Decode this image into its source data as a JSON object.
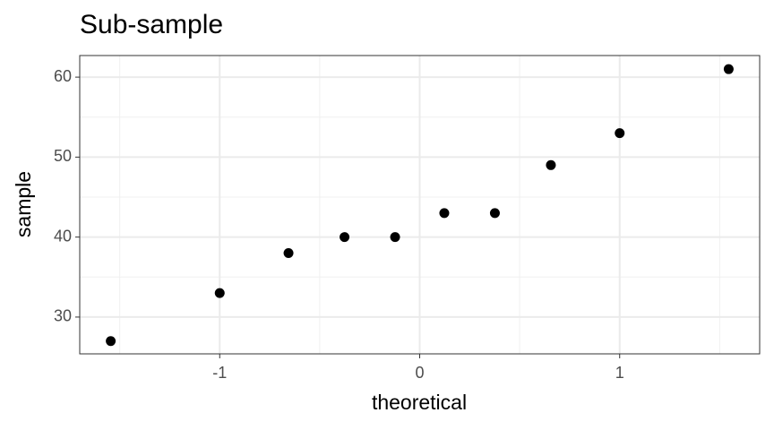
{
  "chart_data": {
    "type": "scatter",
    "title": "Sub-sample",
    "x_label": "theoretical",
    "y_label": "sample",
    "x": [
      -1.545,
      -1.0,
      -0.656,
      -0.376,
      -0.123,
      0.123,
      0.376,
      0.656,
      1.0,
      1.545
    ],
    "values": [
      27,
      33,
      38,
      40,
      40,
      43,
      43,
      49,
      53,
      61
    ],
    "color": "#000000",
    "xlim": [
      -1.7,
      1.7
    ],
    "xticks": [
      -1,
      0,
      1
    ],
    "x_minor_grid": [
      -1.5,
      -0.5,
      0.5,
      1.5
    ],
    "ylim": [
      25.4,
      62.7
    ],
    "yticks": [
      30,
      40,
      50,
      60
    ],
    "y_minor_grid": [
      25,
      35,
      45,
      55
    ],
    "grid": true
  }
}
